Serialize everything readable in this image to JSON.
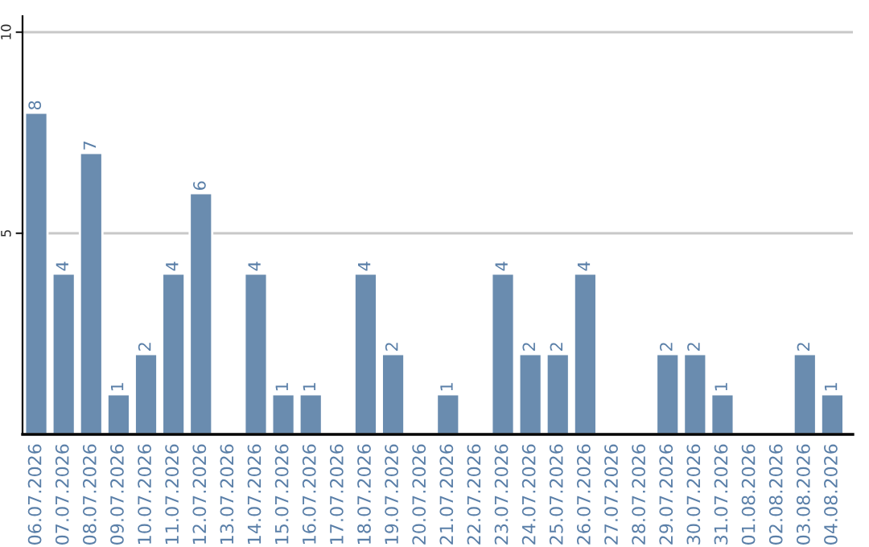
{
  "chart_data": {
    "type": "bar",
    "categories": [
      "06.07.2026",
      "07.07.2026",
      "08.07.2026",
      "09.07.2026",
      "10.07.2026",
      "11.07.2026",
      "12.07.2026",
      "13.07.2026",
      "14.07.2026",
      "15.07.2026",
      "16.07.2026",
      "17.07.2026",
      "18.07.2026",
      "19.07.2026",
      "20.07.2026",
      "21.07.2026",
      "22.07.2026",
      "23.07.2026",
      "24.07.2026",
      "25.07.2026",
      "26.07.2026",
      "27.07.2026",
      "28.07.2026",
      "29.07.2026",
      "30.07.2026",
      "31.07.2026",
      "01.08.2026",
      "02.08.2026",
      "03.08.2026",
      "04.08.2026"
    ],
    "values": [
      8,
      4,
      7,
      1,
      2,
      4,
      6,
      null,
      4,
      1,
      1,
      null,
      4,
      2,
      null,
      1,
      null,
      4,
      2,
      2,
      4,
      null,
      null,
      2,
      2,
      1,
      null,
      null,
      2,
      1
    ],
    "value_labels": [
      "8",
      "4",
      "7",
      "1",
      "2",
      "4",
      "6",
      null,
      "4",
      "1",
      "1",
      null,
      "4",
      "2",
      null,
      "1",
      null,
      "4",
      "2",
      "2",
      "4",
      null,
      null,
      "2",
      "2",
      "1",
      null,
      null,
      "2",
      "1"
    ],
    "color": "#6a8caf",
    "ylim": [
      0,
      10.4
    ],
    "yticks": [
      5,
      10
    ],
    "grid": "y",
    "legend": false
  }
}
